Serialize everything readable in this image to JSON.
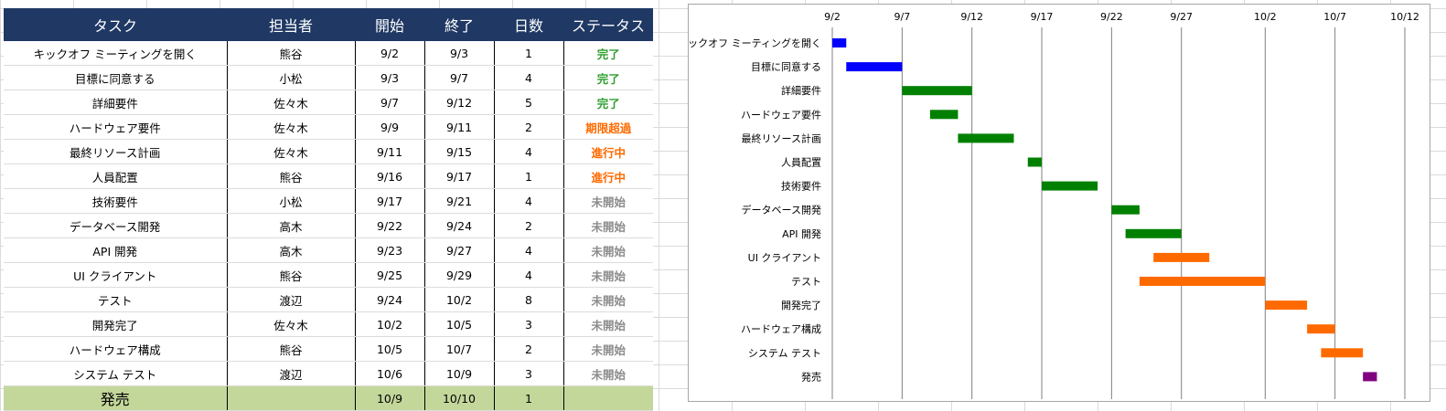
{
  "table": {
    "headers": [
      "タスク",
      "担当者",
      "開始",
      "終了",
      "日数",
      "ステータス"
    ],
    "rows": [
      [
        "キックオフ ミーティングを開く",
        "熊谷",
        "9/2",
        "9/3",
        "1",
        "完了"
      ],
      [
        "目標に同意する",
        "小松",
        "9/3",
        "9/7",
        "4",
        "完了"
      ],
      [
        "詳細要件",
        "佐々木",
        "9/7",
        "9/12",
        "5",
        "完了"
      ],
      [
        "ハードウェア要件",
        "佐々木",
        "9/9",
        "9/11",
        "2",
        "期限超過"
      ],
      [
        "最終リソース計画",
        "佐々木",
        "9/11",
        "9/15",
        "4",
        "進行中"
      ],
      [
        "人員配置",
        "熊谷",
        "9/16",
        "9/17",
        "1",
        "進行中"
      ],
      [
        "技術要件",
        "小松",
        "9/17",
        "9/21",
        "4",
        "未開始"
      ],
      [
        "データベース開発",
        "高木",
        "9/22",
        "9/24",
        "2",
        "未開始"
      ],
      [
        "API 開発",
        "高木",
        "9/23",
        "9/27",
        "4",
        "未開始"
      ],
      [
        "UI クライアント",
        "熊谷",
        "9/25",
        "9/29",
        "4",
        "未開始"
      ],
      [
        "テスト",
        "渡辺",
        "9/24",
        "10/2",
        "8",
        "未開始"
      ],
      [
        "開発完了",
        "佐々木",
        "10/2",
        "10/5",
        "3",
        "未開始"
      ],
      [
        "ハードウェア構成",
        "熊谷",
        "10/5",
        "10/7",
        "2",
        "未開始"
      ],
      [
        "システム テスト",
        "渡辺",
        "10/6",
        "10/9",
        "3",
        "未開始"
      ],
      [
        "発売",
        "",
        "10/9",
        "10/10",
        "1",
        ""
      ]
    ]
  },
  "chart_data": {
    "type": "bar",
    "orientation": "horizontal-gantt",
    "x_ticks": [
      "9/2",
      "9/7",
      "9/12",
      "9/17",
      "9/22",
      "9/27",
      "10/2",
      "10/7",
      "10/12"
    ],
    "xlim": [
      "9/2",
      "10/12"
    ],
    "grid": "vertical",
    "legend": "none",
    "series": [
      {
        "values": [
          {
            "task": "キックオフ ミーティングを開く",
            "start": "9/2",
            "end": "9/3",
            "color": "#0000ff"
          },
          {
            "task": "目標に同意する",
            "start": "9/3",
            "end": "9/7",
            "color": "#0000ff"
          },
          {
            "task": "詳細要件",
            "start": "9/7",
            "end": "9/12",
            "color": "#008000"
          },
          {
            "task": "ハードウェア要件",
            "start": "9/9",
            "end": "9/11",
            "color": "#008000"
          },
          {
            "task": "最終リソース計画",
            "start": "9/11",
            "end": "9/15",
            "color": "#008000"
          },
          {
            "task": "人員配置",
            "start": "9/16",
            "end": "9/17",
            "color": "#008000"
          },
          {
            "task": "技術要件",
            "start": "9/17",
            "end": "9/21",
            "color": "#008000"
          },
          {
            "task": "データベース開発",
            "start": "9/22",
            "end": "9/24",
            "color": "#008000"
          },
          {
            "task": "API 開発",
            "start": "9/23",
            "end": "9/27",
            "color": "#008000"
          },
          {
            "task": "UI クライアント",
            "start": "9/25",
            "end": "9/29",
            "color": "#ff6a00"
          },
          {
            "task": "テスト",
            "start": "9/24",
            "end": "10/2",
            "color": "#ff6a00"
          },
          {
            "task": "開発完了",
            "start": "10/2",
            "end": "10/5",
            "color": "#ff6a00"
          },
          {
            "task": "ハードウェア構成",
            "start": "10/5",
            "end": "10/7",
            "color": "#ff6a00"
          },
          {
            "task": "システム テスト",
            "start": "10/6",
            "end": "10/9",
            "color": "#ff6a00"
          },
          {
            "task": "発売",
            "start": "10/9",
            "end": "10/10",
            "color": "#800080"
          }
        ]
      }
    ]
  },
  "colors": {
    "header_bg": "#1f3864",
    "status_done": "#2e9e2e",
    "status_overdue": "#ff6a00",
    "status_in_progress": "#ff6a00",
    "status_not_started": "#8c8c8c",
    "launch_row_bg": "#c4d79b"
  }
}
